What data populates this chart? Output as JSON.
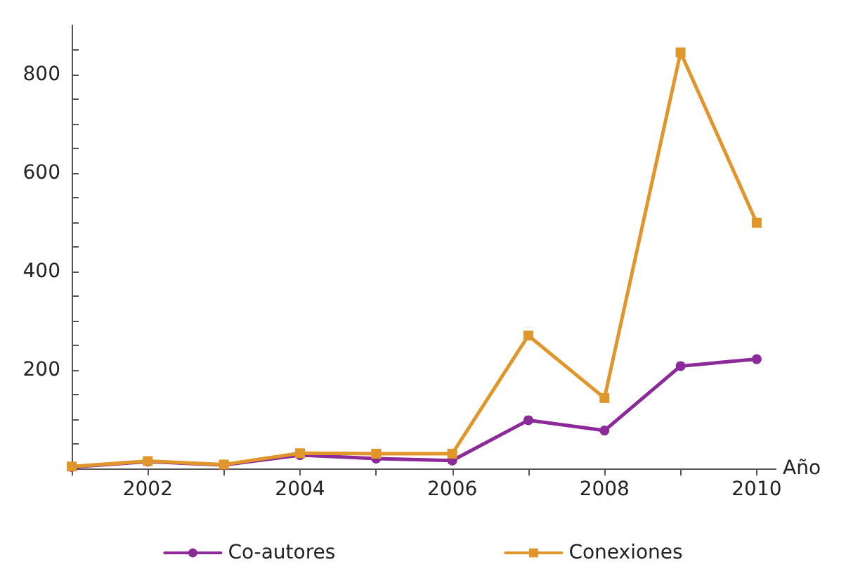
{
  "chart_data": {
    "type": "line",
    "xlabel": "Año",
    "x": [
      2001,
      2002,
      2003,
      2004,
      2005,
      2006,
      2007,
      2008,
      2009,
      2010
    ],
    "series": [
      {
        "name": "Co-autores",
        "color": "#8b2a98",
        "marker": "circle",
        "values": [
          3,
          14,
          7,
          27,
          20,
          16,
          98,
          77,
          208,
          222
        ]
      },
      {
        "name": "Conexiones",
        "color": "#e0962a",
        "marker": "square",
        "values": [
          4,
          15,
          8,
          31,
          30,
          30,
          270,
          143,
          845,
          499
        ]
      }
    ],
    "xlim": [
      2001,
      2010.25
    ],
    "xticks": [
      {
        "value": 2001,
        "label": null
      },
      2002,
      {
        "value": 2003,
        "label": null
      },
      2004,
      {
        "value": 2005,
        "label": null
      },
      2006,
      {
        "value": 2007,
        "label": null
      },
      2008,
      {
        "value": 2009,
        "label": null
      },
      2010
    ],
    "ylim": [
      0,
      900
    ],
    "yticks": [
      {
        "value": 50,
        "label": null
      },
      {
        "value": 100,
        "label": null
      },
      {
        "value": 150,
        "label": null
      },
      200,
      {
        "value": 250,
        "label": null
      },
      {
        "value": 300,
        "label": null
      },
      {
        "value": 350,
        "label": null
      },
      400,
      {
        "value": 450,
        "label": null
      },
      {
        "value": 500,
        "label": null
      },
      {
        "value": 550,
        "label": null
      },
      600,
      {
        "value": 650,
        "label": null
      },
      {
        "value": 700,
        "label": null
      },
      {
        "value": 750,
        "label": null
      },
      800,
      {
        "value": 850,
        "label": null
      }
    ],
    "grid": false,
    "legend": "bottom",
    "line_style": "solid"
  }
}
